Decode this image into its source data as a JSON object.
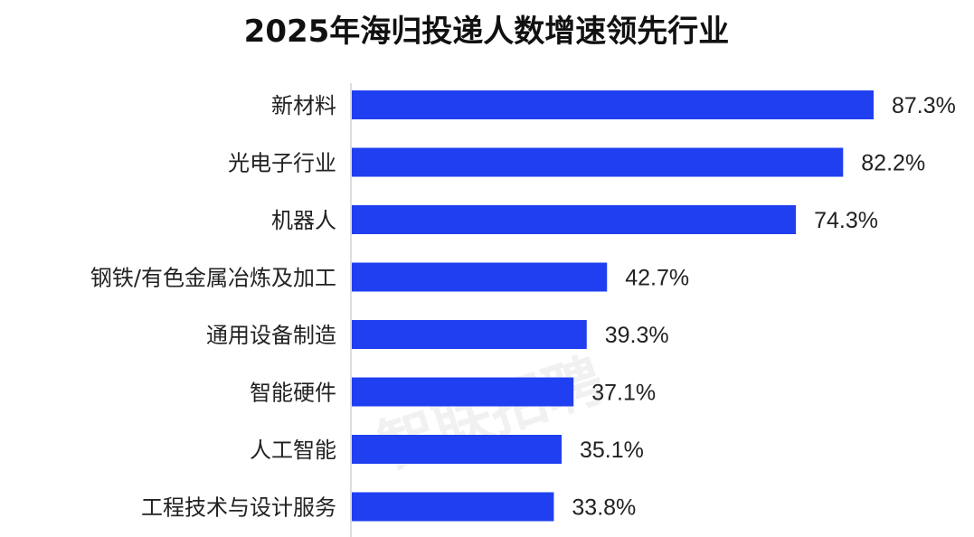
{
  "chart_data": {
    "type": "bar",
    "orientation": "horizontal",
    "title": "2025年海归投递人数增速领先行业",
    "categories": [
      "新材料",
      "光电子行业",
      "机器人",
      "钢铁/有色金属冶炼及加工",
      "通用设备制造",
      "智能硬件",
      "人工智能",
      "工程技术与设计服务"
    ],
    "values": [
      87.3,
      82.2,
      74.3,
      42.7,
      39.3,
      37.1,
      35.1,
      33.8
    ],
    "value_labels": [
      "87.3%",
      "82.2%",
      "74.3%",
      "42.7%",
      "39.3%",
      "37.1%",
      "35.1%",
      "33.8%"
    ],
    "unit": "%",
    "xlim": [
      0,
      100
    ],
    "bar_color": "#1f3ff0",
    "grid": false,
    "legend": "none"
  },
  "watermark": "智联招聘"
}
